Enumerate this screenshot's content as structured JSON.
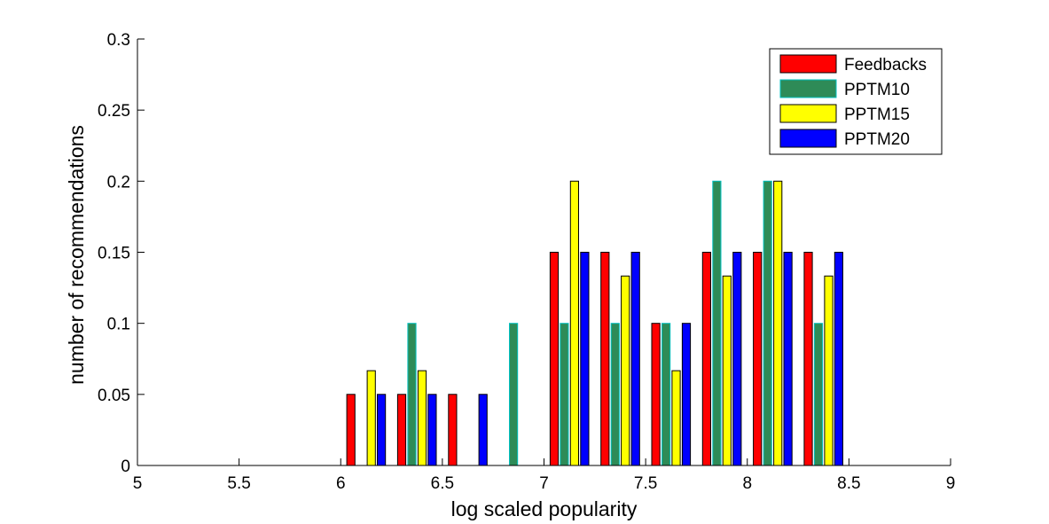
{
  "chart_data": {
    "type": "bar",
    "title": "",
    "xlabel": "log scaled popularity",
    "ylabel": "number of recommendations",
    "xlim": [
      5,
      9
    ],
    "ylim": [
      0,
      0.3
    ],
    "xticks": [
      "5",
      "5.5",
      "6",
      "6.5",
      "7",
      "7.5",
      "8",
      "8.5",
      "9"
    ],
    "yticks": [
      "0",
      "0.05",
      "0.1",
      "0.15",
      "0.2",
      "0.25",
      "0.3"
    ],
    "bin_centers": [
      5.125,
      5.375,
      5.625,
      5.875,
      6.125,
      6.375,
      6.625,
      6.875,
      7.125,
      7.375,
      7.625,
      7.875,
      8.125,
      8.375,
      8.625,
      8.875
    ],
    "grid": false,
    "legend_position": "top-right",
    "series": [
      {
        "name": "Feedbacks",
        "color": "#ff0000",
        "values": [
          0,
          0,
          0,
          0,
          0.05,
          0.05,
          0.05,
          0,
          0.15,
          0.15,
          0.1,
          0.15,
          0.15,
          0.15,
          0,
          0
        ]
      },
      {
        "name": "PPTM10",
        "color": "#2e8b57",
        "edge_color": "#00c0c0",
        "values": [
          0,
          0,
          0,
          0,
          0,
          0.1,
          0,
          0.1,
          0.1,
          0.1,
          0.1,
          0.2,
          0.2,
          0.1,
          0,
          0
        ]
      },
      {
        "name": "PPTM15",
        "color": "#ffff00",
        "values": [
          0,
          0,
          0,
          0,
          0.0667,
          0.0667,
          0,
          0,
          0.2,
          0.1333,
          0.0667,
          0.1333,
          0.2,
          0.1333,
          0,
          0
        ]
      },
      {
        "name": "PPTM20",
        "color": "#0000ff",
        "values": [
          0,
          0,
          0,
          0,
          0.05,
          0.05,
          0.05,
          0,
          0.15,
          0.15,
          0.1,
          0.15,
          0.15,
          0.15,
          0,
          0
        ]
      }
    ]
  }
}
